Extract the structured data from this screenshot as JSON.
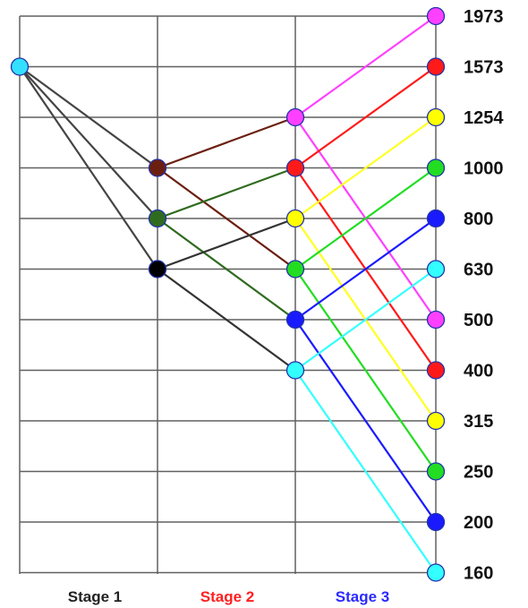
{
  "stage_labels": [
    {
      "text": "Stage 1",
      "color": "#222222"
    },
    {
      "text": "Stage 2",
      "color": "#ff2020"
    },
    {
      "text": "Stage 3",
      "color": "#2a2aff"
    }
  ],
  "speeds": [
    "1973",
    "1573",
    "1254",
    "1000",
    "800",
    "630",
    "500",
    "400",
    "315",
    "250",
    "200",
    "160"
  ],
  "grid_color": "#606060",
  "input_node": {
    "row": 1,
    "color": "#33e0ff"
  },
  "stage1_nodes": [
    {
      "row": 3,
      "color": "#6b1f10"
    },
    {
      "row": 4,
      "color": "#2f6b1f"
    },
    {
      "row": 5,
      "color": "#000000"
    }
  ],
  "stage2_nodes": [
    {
      "row": 2,
      "color": "#ff40ff"
    },
    {
      "row": 3,
      "color": "#ff1a1a"
    },
    {
      "row": 4,
      "color": "#ffff00"
    },
    {
      "row": 5,
      "color": "#22dd22"
    },
    {
      "row": 6,
      "color": "#1a1aff"
    },
    {
      "row": 7,
      "color": "#33ffff"
    }
  ],
  "output_nodes": [
    {
      "row": 0,
      "color": "#ff40ff"
    },
    {
      "row": 1,
      "color": "#ff1a1a"
    },
    {
      "row": 2,
      "color": "#ffff00"
    },
    {
      "row": 3,
      "color": "#22dd22"
    },
    {
      "row": 4,
      "color": "#1a1aff"
    },
    {
      "row": 5,
      "color": "#33ffff"
    },
    {
      "row": 6,
      "color": "#ff40ff"
    },
    {
      "row": 7,
      "color": "#ff1a1a"
    },
    {
      "row": 8,
      "color": "#ffff00"
    },
    {
      "row": 9,
      "color": "#22dd22"
    },
    {
      "row": 10,
      "color": "#1a1aff"
    },
    {
      "row": 11,
      "color": "#33ffff"
    }
  ],
  "connections": [
    {
      "from_col": 0,
      "from_row": 1,
      "to_col": 1,
      "to_row": 3,
      "color": "#444444"
    },
    {
      "from_col": 0,
      "from_row": 1,
      "to_col": 1,
      "to_row": 4,
      "color": "#444444"
    },
    {
      "from_col": 0,
      "from_row": 1,
      "to_col": 1,
      "to_row": 5,
      "color": "#444444"
    },
    {
      "from_col": 1,
      "from_row": 3,
      "to_col": 2,
      "to_row": 2,
      "color": "#6b1f10"
    },
    {
      "from_col": 1,
      "from_row": 3,
      "to_col": 2,
      "to_row": 5,
      "color": "#6b1f10"
    },
    {
      "from_col": 1,
      "from_row": 4,
      "to_col": 2,
      "to_row": 3,
      "color": "#2f6b1f"
    },
    {
      "from_col": 1,
      "from_row": 4,
      "to_col": 2,
      "to_row": 6,
      "color": "#2f6b1f"
    },
    {
      "from_col": 1,
      "from_row": 5,
      "to_col": 2,
      "to_row": 4,
      "color": "#333333"
    },
    {
      "from_col": 1,
      "from_row": 5,
      "to_col": 2,
      "to_row": 7,
      "color": "#333333"
    },
    {
      "from_col": 2,
      "from_row": 2,
      "to_col": 3,
      "to_row": 0,
      "color": "#ff40ff"
    },
    {
      "from_col": 2,
      "from_row": 2,
      "to_col": 3,
      "to_row": 6,
      "color": "#ff40ff"
    },
    {
      "from_col": 2,
      "from_row": 3,
      "to_col": 3,
      "to_row": 1,
      "color": "#ff1a1a"
    },
    {
      "from_col": 2,
      "from_row": 3,
      "to_col": 3,
      "to_row": 7,
      "color": "#ff1a1a"
    },
    {
      "from_col": 2,
      "from_row": 4,
      "to_col": 3,
      "to_row": 2,
      "color": "#ffff22"
    },
    {
      "from_col": 2,
      "from_row": 4,
      "to_col": 3,
      "to_row": 8,
      "color": "#ffff22"
    },
    {
      "from_col": 2,
      "from_row": 5,
      "to_col": 3,
      "to_row": 3,
      "color": "#22dd22"
    },
    {
      "from_col": 2,
      "from_row": 5,
      "to_col": 3,
      "to_row": 9,
      "color": "#22dd22"
    },
    {
      "from_col": 2,
      "from_row": 6,
      "to_col": 3,
      "to_row": 4,
      "color": "#1a1aff"
    },
    {
      "from_col": 2,
      "from_row": 6,
      "to_col": 3,
      "to_row": 10,
      "color": "#1a1aff"
    },
    {
      "from_col": 2,
      "from_row": 7,
      "to_col": 3,
      "to_row": 5,
      "color": "#33ffff"
    },
    {
      "from_col": 2,
      "from_row": 7,
      "to_col": 3,
      "to_row": 11,
      "color": "#33ffff"
    }
  ]
}
